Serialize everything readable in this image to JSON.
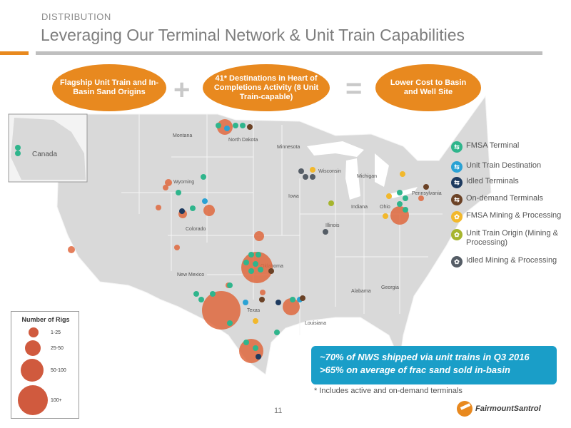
{
  "header": {
    "section": "DISTRIBUTION",
    "title": "Leveraging Our Terminal Network & Unit Train Capabilities"
  },
  "equation": {
    "left": "Flagship Unit Train and In-Basin Sand Origins",
    "middle": "41* Destinations in Heart of Completions Activity (8 Unit Train-capable)",
    "right": "Lower Cost to Basin and Well Site",
    "plus_symbol": "+",
    "equals_symbol": "="
  },
  "map": {
    "labels": {
      "canada": "Canada",
      "montana": "Montana",
      "north_dakota": "North Dakota",
      "minnesota": "Minnesota",
      "wyoming": "Wyoming",
      "wisconsin": "Wisconsin",
      "michigan": "Michigan",
      "iowa": "Iowa",
      "colorado": "Colorado",
      "illinois": "Illinois",
      "indiana": "Indiana",
      "ohio": "Ohio",
      "pennsylvania": "Pennsylvania",
      "oklahoma": "Oklahoma",
      "new_mexico": "New Mexico",
      "texas": "Texas",
      "alabama": "Alabama",
      "georgia": "Georgia",
      "louisiana": "Louisiana"
    }
  },
  "legend": {
    "items": [
      {
        "label": "FMSA Terminal",
        "color": "#2fb58c",
        "glyph": "⇆"
      },
      {
        "label": "Unit Train Destination",
        "color": "#2aa2d4",
        "glyph": "⇆"
      },
      {
        "label": "Idled Terminals",
        "color": "#1d3a5f",
        "glyph": "⇆"
      },
      {
        "label": "On-demand Terminals",
        "color": "#6b4226",
        "glyph": "⇆"
      },
      {
        "label": "FMSA Mining & Processing",
        "color": "#f2b82c",
        "glyph": "✿"
      },
      {
        "label": "Unit Train Origin (Mining & Processing)",
        "color": "#a6b52e",
        "glyph": "✿"
      },
      {
        "label": "Idled Mining & Processing",
        "color": "#555d66",
        "glyph": "✿"
      }
    ]
  },
  "rigs": {
    "title": "Number of Rigs",
    "buckets": [
      "1-25",
      "25-50",
      "50-100",
      "100+"
    ]
  },
  "callout": {
    "line1": "~70% of NWS shipped via unit trains in Q3 2016",
    "line2": ">65% on average of frac sand sold in-basin"
  },
  "footnote": "* Includes active and on-demand terminals",
  "page_number": "11",
  "logo": "FairmountSantrol",
  "colors": {
    "accent": "#e8891f",
    "callout": "#1a9ec8",
    "rig_circle": "#d05a3e"
  }
}
